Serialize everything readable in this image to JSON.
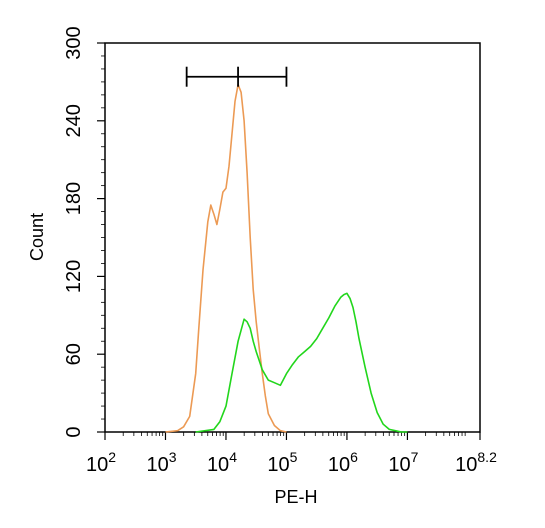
{
  "chart_data": {
    "type": "line",
    "xlabel": "PE-H",
    "ylabel": "Count",
    "xscale": "log",
    "xlim_log10": [
      2,
      8.2
    ],
    "ylim": [
      0,
      300
    ],
    "grid": false,
    "x_ticks": [
      {
        "base": "10",
        "exp": "2",
        "log10": 2
      },
      {
        "base": "10",
        "exp": "3",
        "log10": 3
      },
      {
        "base": "10",
        "exp": "4",
        "log10": 4
      },
      {
        "base": "10",
        "exp": "5",
        "log10": 5
      },
      {
        "base": "10",
        "exp": "6",
        "log10": 6
      },
      {
        "base": "10",
        "exp": "7",
        "log10": 7
      },
      {
        "base": "10",
        "exp": "8.2",
        "log10": 8.2
      }
    ],
    "y_ticks": [
      0,
      60,
      120,
      180,
      240,
      300
    ],
    "gate": {
      "x_min_log10": 3.35,
      "x_max_log10": 5.0,
      "center_log10": 4.2,
      "y": 274
    },
    "series": [
      {
        "color": "#ec9a54",
        "x_log10": [
          3.0,
          3.2,
          3.3,
          3.4,
          3.5,
          3.55,
          3.62,
          3.7,
          3.75,
          3.8,
          3.85,
          3.9,
          3.95,
          4.0,
          4.05,
          4.1,
          4.15,
          4.2,
          4.25,
          4.3,
          4.35,
          4.4,
          4.45,
          4.5,
          4.55,
          4.6,
          4.65,
          4.7,
          4.8,
          4.9,
          5.0
        ],
        "y": [
          0,
          1,
          4,
          12,
          45,
          80,
          125,
          162,
          175,
          168,
          160,
          172,
          185,
          188,
          205,
          230,
          255,
          268,
          262,
          240,
          200,
          150,
          110,
          85,
          65,
          45,
          28,
          14,
          5,
          1,
          0
        ]
      },
      {
        "color": "#22d61c",
        "x_log10": [
          3.5,
          3.8,
          3.9,
          4.0,
          4.1,
          4.2,
          4.3,
          4.35,
          4.4,
          4.45,
          4.5,
          4.6,
          4.7,
          4.8,
          4.9,
          5.0,
          5.1,
          5.2,
          5.3,
          5.4,
          5.5,
          5.6,
          5.7,
          5.8,
          5.9,
          5.95,
          6.0,
          6.05,
          6.1,
          6.15,
          6.2,
          6.3,
          6.4,
          6.5,
          6.6,
          6.7,
          6.8,
          6.9,
          7.0
        ],
        "y": [
          0,
          2,
          8,
          20,
          45,
          70,
          87,
          85,
          80,
          70,
          62,
          48,
          40,
          38,
          36,
          45,
          52,
          58,
          62,
          66,
          72,
          80,
          88,
          97,
          104,
          106,
          107,
          103,
          96,
          85,
          72,
          50,
          30,
          15,
          6,
          2,
          1,
          0,
          0
        ]
      }
    ]
  }
}
